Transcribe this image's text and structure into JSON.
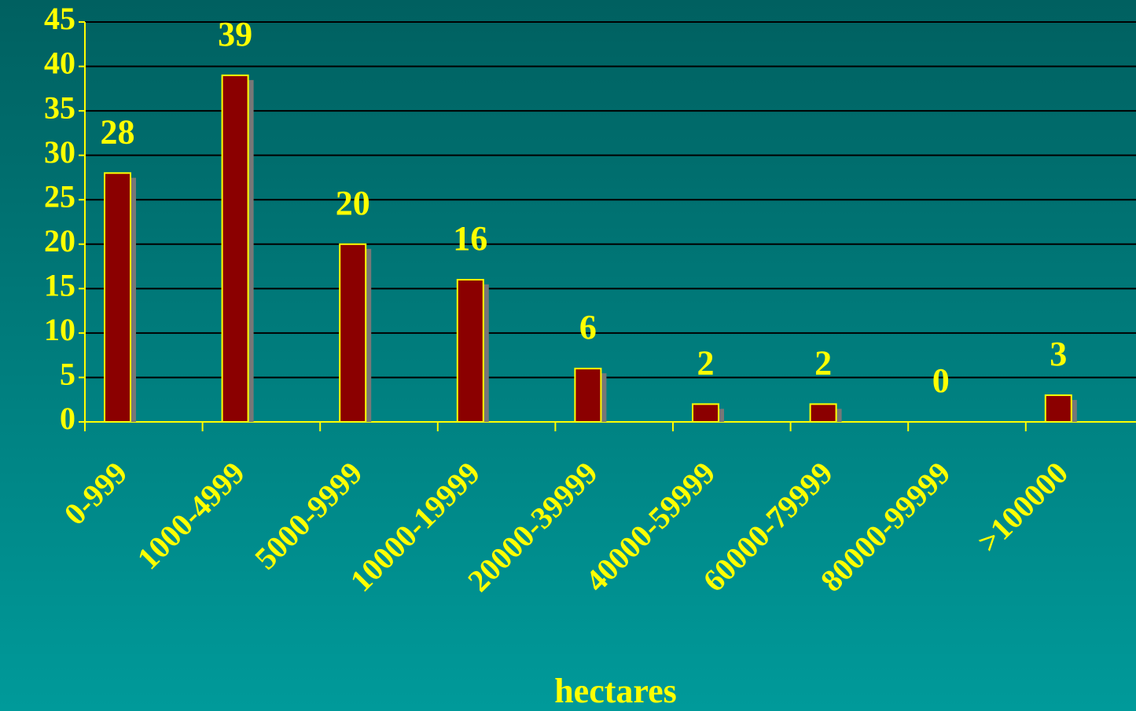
{
  "chart_data": {
    "type": "bar",
    "x_label": "hectares",
    "categories": [
      "0-999",
      "1000-4999",
      "5000-9999",
      "10000-19999",
      "20000-39999",
      "40000-59999",
      "60000-79999",
      "80000-99999",
      ">100000"
    ],
    "values": [
      28,
      39,
      20,
      16,
      6,
      2,
      2,
      0,
      3
    ],
    "color": "#8b0000",
    "ylim": [
      0,
      45
    ],
    "yticks": [
      0,
      5,
      10,
      15,
      20,
      25,
      30,
      35,
      40,
      45
    ],
    "grid": true
  }
}
